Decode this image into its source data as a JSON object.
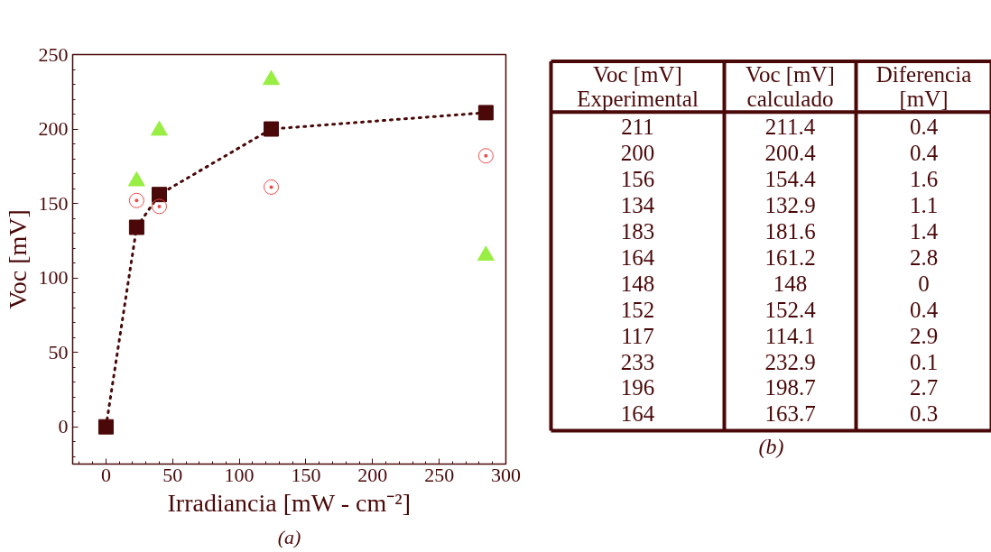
{
  "chart_data": [
    {
      "type": "scatter",
      "title": "(a)",
      "xlabel": "Irradiancia [mW - cm⁻²]",
      "ylabel": "Voc [mV]",
      "xlim": [
        -25,
        300
      ],
      "ylim": [
        -25,
        250
      ],
      "xticks": [
        0,
        50,
        100,
        150,
        200,
        250,
        300
      ],
      "yticks": [
        0,
        50,
        100,
        150,
        200,
        250
      ],
      "grid": false,
      "series": [
        {
          "type": "line",
          "color": "#4a0808",
          "marker": "square",
          "line_style": "dotted",
          "x": [
            0,
            23,
            40,
            124,
            285
          ],
          "values": [
            0,
            134,
            156,
            200,
            211
          ]
        },
        {
          "type": "scatter",
          "color": "#f04a4a",
          "marker": "circle",
          "x": [
            23,
            40,
            124,
            285
          ],
          "values": [
            152,
            148,
            161,
            182
          ]
        },
        {
          "type": "scatter",
          "color": "#99ee44",
          "marker": "triangle",
          "x": [
            23,
            40,
            124,
            285
          ],
          "values": [
            165,
            199,
            233,
            115
          ]
        }
      ]
    },
    {
      "type": "other",
      "title": "(b)",
      "categories": [
        "Voc [mV]\nExperimental",
        "Voc [mV]\ncalculado",
        "Diferencia\n[mV]"
      ],
      "cell_labels": [
        [
          "211",
          "211.4",
          "0.4"
        ],
        [
          "200",
          "200.4",
          "0.4"
        ],
        [
          "156",
          "154.4",
          "1.6"
        ],
        [
          "134",
          "132.9",
          "1.1"
        ],
        [
          "183",
          "181.6",
          "1.4"
        ],
        [
          "164",
          "161.2",
          "2.8"
        ],
        [
          "148",
          "148",
          "0"
        ],
        [
          "152",
          "152.4",
          "0.4"
        ],
        [
          "117",
          "114.1",
          "2.9"
        ],
        [
          "233",
          "232.9",
          "0.1"
        ],
        [
          "196",
          "198.7",
          "2.7"
        ],
        [
          "164",
          "163.7",
          "0.3"
        ]
      ]
    }
  ]
}
